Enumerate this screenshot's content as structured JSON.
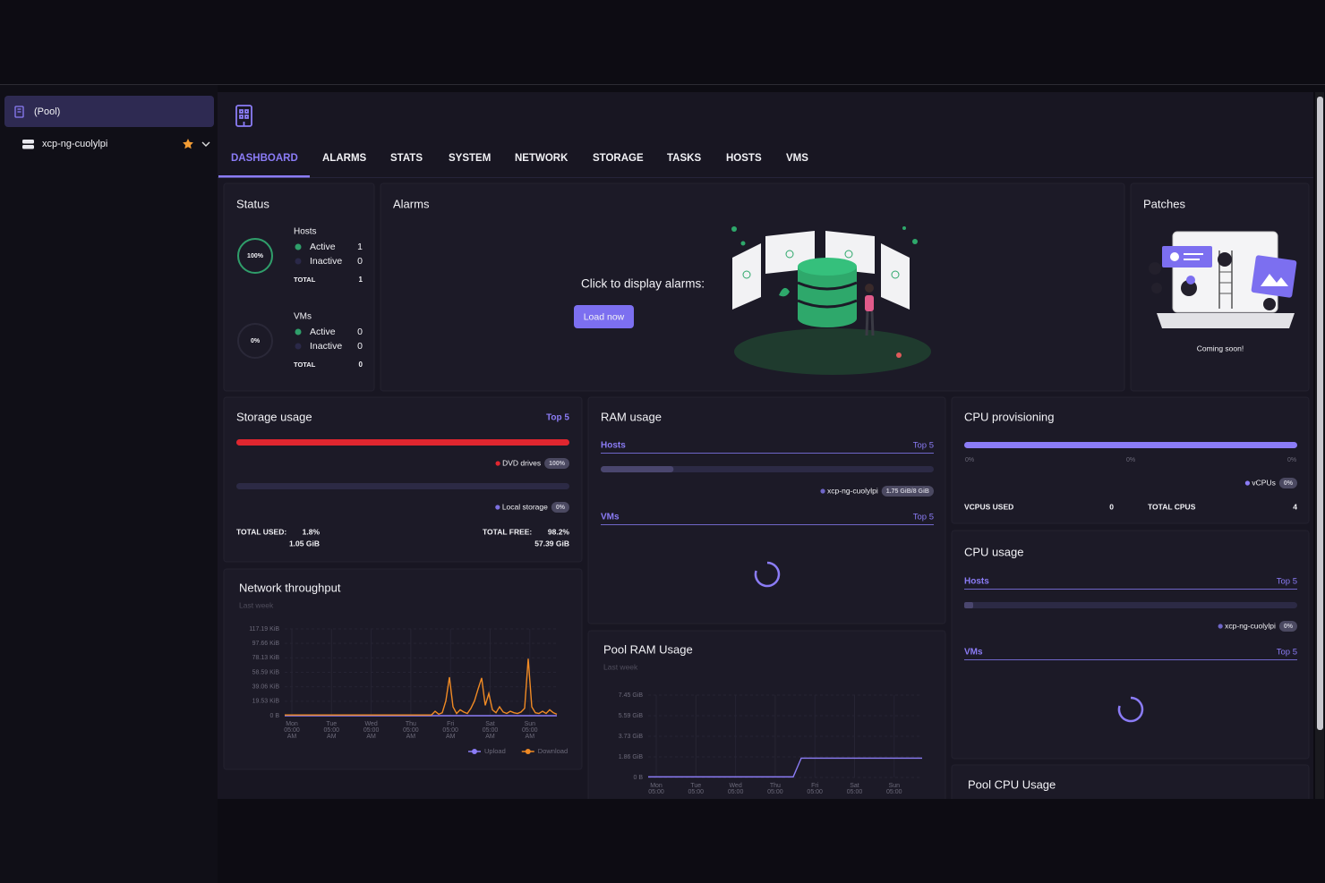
{
  "sidebar": {
    "pool": "(Pool)",
    "host": "xcp-ng-cuolylpi"
  },
  "tabs": [
    "DASHBOARD",
    "ALARMS",
    "STATS",
    "SYSTEM",
    "NETWORK",
    "STORAGE",
    "TASKS",
    "HOSTS",
    "VMS"
  ],
  "status": {
    "title": "Status",
    "hosts": {
      "label": "Hosts",
      "percent": 100,
      "percent_label": "100%",
      "active_label": "Active",
      "active": 1,
      "inactive_label": "Inactive",
      "inactive": 0,
      "total_label": "TOTAL",
      "total": 1
    },
    "vms": {
      "label": "VMs",
      "percent": 0,
      "percent_label": "0%",
      "active_label": "Active",
      "active": 0,
      "inactive_label": "Inactive",
      "inactive": 0,
      "total_label": "TOTAL",
      "total": 0
    }
  },
  "alarms": {
    "title": "Alarms",
    "prompt": "Click to display alarms:",
    "button": "Load now"
  },
  "patches": {
    "title": "Patches",
    "note": "Coming soon!"
  },
  "storage_usage": {
    "title": "Storage usage",
    "top": "Top 5",
    "items": [
      {
        "name": "DVD drives",
        "value": 100,
        "label": "100%",
        "color": "#e0262f"
      },
      {
        "name": "Local storage",
        "value": 0,
        "label": "0%",
        "color": "#7c70e0"
      }
    ],
    "total_used_label": "TOTAL USED:",
    "total_used_percent": "1.8%",
    "total_used": "1.05 GiB",
    "total_free_label": "TOTAL FREE:",
    "total_free_percent": "98.2%",
    "total_free": "57.39 GiB"
  },
  "ram_usage": {
    "title": "RAM usage",
    "hosts_label": "Hosts",
    "hosts_top": "Top 5",
    "hosts": [
      {
        "name": "xcp-ng-cuolylpi",
        "value": 1.75,
        "max": 8,
        "label": "1.75 GiB/8 GiB"
      }
    ],
    "vms_label": "VMs",
    "vms_top": "Top 5"
  },
  "cpu_provisioning": {
    "title": "CPU provisioning",
    "scale": [
      "0%",
      "0%",
      "0%"
    ],
    "legend": "vCPUs",
    "legend_label": "0%",
    "vcpus_used_label": "VCPUS USED",
    "vcpus_used": 0,
    "total_cpus_label": "TOTAL CPUS",
    "total_cpus": 4
  },
  "cpu_usage": {
    "title": "CPU usage",
    "hosts_label": "Hosts",
    "hosts_top": "Top 5",
    "hosts": [
      {
        "name": "xcp-ng-cuolylpi",
        "value": 0,
        "label": "0%"
      }
    ],
    "vms_label": "VMs",
    "vms_top": "Top 5"
  },
  "network_throughput": {
    "type": "line",
    "title": "Network throughput",
    "subtitle": "Last week",
    "categories": [
      [
        "Mon",
        "05:00",
        "AM"
      ],
      [
        "Tue",
        "05:00",
        "AM"
      ],
      [
        "Wed",
        "05:00",
        "AM"
      ],
      [
        "Thu",
        "05:00",
        "AM"
      ],
      [
        "Fri",
        "05:00",
        "AM"
      ],
      [
        "Sat",
        "05:00",
        "AM"
      ],
      [
        "Sun",
        "05:00",
        "AM"
      ]
    ],
    "ylim": [
      0,
      117.19
    ],
    "yticks": [
      {
        "value": 0,
        "label": "0 B"
      },
      {
        "value": 19.53,
        "label": "19.53 KiB"
      },
      {
        "value": 39.06,
        "label": "39.06 KiB"
      },
      {
        "value": 58.59,
        "label": "58.59 KiB"
      },
      {
        "value": 78.13,
        "label": "78.13 KiB"
      },
      {
        "value": 97.66,
        "label": "97.66 KiB"
      },
      {
        "value": 117.19,
        "label": "117.19 KiB"
      }
    ],
    "series": [
      {
        "name": "Upload",
        "color": "#8b7cf6",
        "values": [
          0,
          0,
          0,
          0,
          0,
          0,
          0,
          0,
          0,
          0,
          0,
          0,
          0,
          0,
          0,
          0,
          0,
          0,
          0,
          0,
          0,
          0,
          0,
          0,
          0,
          0,
          0,
          0,
          0,
          0,
          0,
          0,
          0,
          0,
          0,
          0,
          0,
          0,
          0,
          0,
          0,
          0,
          0,
          0,
          0,
          0,
          0,
          0,
          0,
          0,
          0,
          0,
          0,
          0,
          0,
          0,
          0,
          0,
          0,
          0,
          0,
          0,
          0,
          0,
          0,
          0,
          0,
          0,
          0,
          0,
          0,
          0,
          0,
          0,
          0,
          0,
          0
        ]
      },
      {
        "name": "Download",
        "color": "#f08a24",
        "values": [
          1,
          1,
          1,
          1,
          1,
          1,
          1,
          1,
          1,
          1,
          1,
          1,
          1,
          1,
          1,
          1,
          1,
          1,
          1,
          1,
          1,
          1,
          1,
          1,
          1,
          1,
          1,
          1,
          1,
          1,
          1,
          1,
          1,
          1,
          1,
          1,
          1,
          1,
          1,
          1,
          1,
          1,
          6,
          2,
          4,
          20,
          52,
          12,
          3,
          8,
          5,
          3,
          10,
          20,
          36,
          51,
          14,
          30,
          8,
          4,
          12,
          5,
          3,
          6,
          4,
          3,
          5,
          10,
          77,
          12,
          4,
          3,
          6,
          3,
          8,
          4,
          2
        ]
      }
    ]
  },
  "pool_ram_usage": {
    "type": "line",
    "title": "Pool RAM Usage",
    "subtitle": "Last week",
    "categories": [
      [
        "Mon",
        "05:00"
      ],
      [
        "Tue",
        "05:00"
      ],
      [
        "Wed",
        "05:00"
      ],
      [
        "Thu",
        "05:00"
      ],
      [
        "Fri",
        "05:00"
      ],
      [
        "Sat",
        "05:00"
      ],
      [
        "Sun",
        "05:00"
      ]
    ],
    "ylim": [
      0,
      7.45
    ],
    "yticks": [
      {
        "value": 0,
        "label": "0 B"
      },
      {
        "value": 1.86,
        "label": "1.86 GiB"
      },
      {
        "value": 3.73,
        "label": "3.73 GiB"
      },
      {
        "value": 5.59,
        "label": "5.59 GiB"
      },
      {
        "value": 7.45,
        "label": "7.45 GiB"
      }
    ],
    "series": [
      {
        "color": "#8b7cf6",
        "values": [
          0.05,
          0.05,
          0.05,
          0.05,
          0.05,
          0.05,
          0.05,
          0.05,
          0.05,
          0.05,
          0.05,
          0.05,
          0.05,
          0.05,
          0.05,
          0.05,
          0.05,
          0.05,
          0.05,
          1.75,
          1.75,
          1.75,
          1.75,
          1.75,
          1.75,
          1.75,
          1.75,
          1.75,
          1.75,
          1.75,
          1.75,
          1.75,
          1.75,
          1.75,
          1.75
        ]
      }
    ]
  },
  "pool_cpu_usage": {
    "title": "Pool CPU Usage"
  }
}
